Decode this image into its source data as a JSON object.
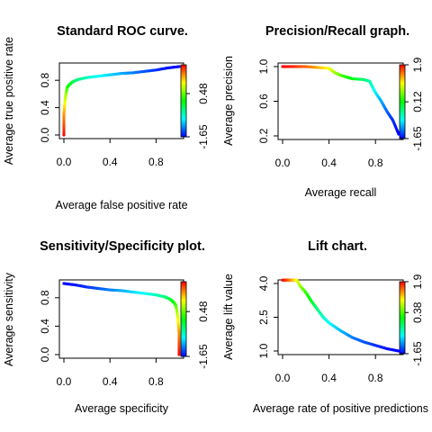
{
  "chart_data": [
    {
      "type": "line",
      "title": "Standard ROC curve.",
      "xlabel": "Average false positive rate",
      "ylabel": "Average true positive rate",
      "xlim": [
        0,
        1
      ],
      "ylim": [
        0,
        1
      ],
      "xticks": [
        "0.0",
        "0.4",
        "0.8"
      ],
      "yticks": [
        "0.0",
        "0.4",
        "0.8"
      ],
      "colorbar_ticks": [
        "-1.65",
        "0.48"
      ],
      "colorbar_range": [
        -1.65,
        1.9
      ],
      "series": [
        {
          "x": [
            0.0,
            0.0,
            0.01,
            0.02,
            0.03,
            0.05,
            0.08,
            0.12,
            0.2,
            0.3,
            0.4,
            0.5,
            0.6,
            0.7,
            0.8,
            0.9,
            1.0
          ],
          "y": [
            0.0,
            0.3,
            0.5,
            0.63,
            0.7,
            0.74,
            0.78,
            0.81,
            0.84,
            0.86,
            0.88,
            0.9,
            0.91,
            0.93,
            0.95,
            0.98,
            1.0
          ],
          "cutoff": [
            1.9,
            1.4,
            0.95,
            0.6,
            0.3,
            0.1,
            -0.1,
            -0.3,
            -0.55,
            -0.75,
            -0.9,
            -1.05,
            -1.2,
            -1.35,
            -1.48,
            -1.58,
            -1.65
          ]
        }
      ],
      "grid": false
    },
    {
      "type": "line",
      "title": "Precision/Recall graph.",
      "xlabel": "Average recall",
      "ylabel": "Average precision",
      "xlim": [
        0,
        1
      ],
      "ylim": [
        0.2,
        1.0
      ],
      "xticks": [
        "0.0",
        "0.4",
        "0.8"
      ],
      "yticks": [
        "0.2",
        "0.6",
        "1.0"
      ],
      "colorbar_ticks": [
        "-1.65",
        "0.12",
        "1.9"
      ],
      "colorbar_range": [
        -1.65,
        1.9
      ],
      "series": [
        {
          "x": [
            0.0,
            0.1,
            0.2,
            0.3,
            0.4,
            0.45,
            0.5,
            0.55,
            0.6,
            0.7,
            0.75,
            0.8,
            0.85,
            0.9,
            0.95,
            1.0
          ],
          "y": [
            1.0,
            1.0,
            1.0,
            0.99,
            0.98,
            0.93,
            0.9,
            0.88,
            0.86,
            0.85,
            0.83,
            0.7,
            0.6,
            0.48,
            0.38,
            0.22
          ],
          "cutoff": [
            1.9,
            1.75,
            1.55,
            1.3,
            1.0,
            0.7,
            0.45,
            0.25,
            0.05,
            -0.25,
            -0.45,
            -0.8,
            -1.05,
            -1.3,
            -1.5,
            -1.65
          ]
        }
      ],
      "grid": false
    },
    {
      "type": "line",
      "title": "Sensitivity/Specificity plot.",
      "xlabel": "Average specificity",
      "ylabel": "Average sensitivity",
      "xlim": [
        0,
        1
      ],
      "ylim": [
        0,
        1
      ],
      "xticks": [
        "0.0",
        "0.4",
        "0.8"
      ],
      "yticks": [
        "0.0",
        "0.4",
        "0.8"
      ],
      "colorbar_ticks": [
        "-1.65",
        "0.48"
      ],
      "colorbar_range": [
        -1.65,
        1.9
      ],
      "series": [
        {
          "x": [
            0.0,
            0.1,
            0.2,
            0.3,
            0.4,
            0.5,
            0.6,
            0.7,
            0.8,
            0.88,
            0.92,
            0.95,
            0.97,
            0.98,
            0.99,
            1.0,
            1.0
          ],
          "y": [
            1.0,
            0.98,
            0.95,
            0.93,
            0.91,
            0.9,
            0.88,
            0.86,
            0.84,
            0.81,
            0.78,
            0.74,
            0.7,
            0.63,
            0.5,
            0.3,
            0.0
          ],
          "cutoff": [
            -1.65,
            -1.58,
            -1.48,
            -1.35,
            -1.2,
            -1.05,
            -0.9,
            -0.75,
            -0.55,
            -0.3,
            -0.1,
            0.1,
            0.3,
            0.6,
            0.95,
            1.4,
            1.9
          ]
        }
      ],
      "grid": false
    },
    {
      "type": "line",
      "title": "Lift chart.",
      "xlabel": "Average rate of positive predictions",
      "ylabel": "Average lift value",
      "xlim": [
        0,
        1
      ],
      "ylim": [
        1.0,
        4.0
      ],
      "xticks": [
        "0.0",
        "0.4",
        "0.8"
      ],
      "yticks": [
        "1.0",
        "2.5",
        "4.0"
      ],
      "colorbar_ticks": [
        "-1.65",
        "0.38",
        "1.9"
      ],
      "colorbar_range": [
        -1.65,
        1.9
      ],
      "series": [
        {
          "x": [
            0.0,
            0.05,
            0.1,
            0.15,
            0.2,
            0.25,
            0.3,
            0.35,
            0.4,
            0.5,
            0.6,
            0.7,
            0.8,
            0.9,
            1.0
          ],
          "y": [
            4.4,
            4.4,
            4.35,
            3.9,
            3.6,
            3.2,
            2.85,
            2.5,
            2.25,
            1.9,
            1.6,
            1.4,
            1.25,
            1.1,
            1.0
          ],
          "cutoff": [
            1.9,
            1.6,
            1.2,
            0.7,
            0.3,
            0.0,
            -0.3,
            -0.55,
            -0.75,
            -1.0,
            -1.2,
            -1.35,
            -1.48,
            -1.58,
            -1.65
          ]
        }
      ],
      "grid": false
    }
  ]
}
